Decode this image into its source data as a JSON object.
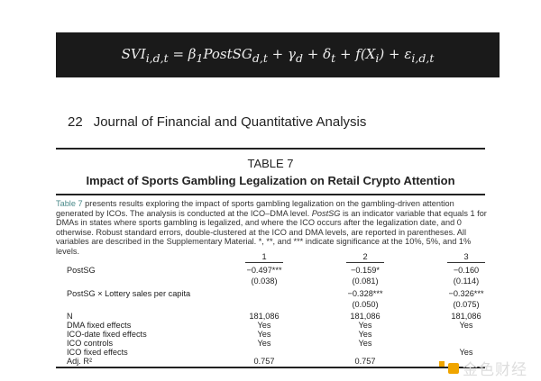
{
  "equation": "SVI_{i,d,t} = β₁PostSG_{d,t} + γ_d + δ_t + f(X_i) + ε_{i,d,t}",
  "header": {
    "page": "22",
    "journal": "Journal of Financial and Quantitative Analysis"
  },
  "table": {
    "number": "TABLE 7",
    "title": "Impact of Sports Gambling Legalization on Retail Crypto Attention",
    "caption_link": "Table 7",
    "caption_1": " presents results exploring the impact of sports gambling legalization on the gambling-driven attention generated by ICOs. The analysis is conducted at the ICO–DMA level. ",
    "caption_italic": "PostSG",
    "caption_2": " is an indicator variable that equals 1 for DMAs in states where sports gambling is legalized, and where the ICO occurs after the legalization date, and 0 otherwise. Robust standard errors, double-clustered at the ICO and DMA levels, are reported in parentheses. All variables are described in the Supplementary Material. *, **, and *** indicate significance at the 10%, 5%, and 1% levels.",
    "columns": [
      "1",
      "2",
      "3"
    ],
    "rows": [
      {
        "label": "PostSG",
        "values": [
          "−0.497***",
          "−0.159*",
          "−0.160"
        ]
      },
      {
        "label": "",
        "values": [
          "(0.038)",
          "(0.081)",
          "(0.114)"
        ]
      },
      {
        "label": "PostSG × Lottery sales per capita",
        "values": [
          "",
          "−0.328***",
          "−0.326***"
        ]
      },
      {
        "label": "",
        "values": [
          "",
          "(0.050)",
          "(0.075)"
        ]
      },
      {
        "label": "N",
        "values": [
          "181,086",
          "181,086",
          "181,086"
        ]
      },
      {
        "label": "DMA fixed effects",
        "values": [
          "Yes",
          "Yes",
          "Yes"
        ]
      },
      {
        "label": "ICO-date fixed effects",
        "values": [
          "Yes",
          "Yes",
          ""
        ]
      },
      {
        "label": "ICO controls",
        "values": [
          "Yes",
          "Yes",
          ""
        ]
      },
      {
        "label": "ICO fixed effects",
        "values": [
          "",
          "",
          "Yes"
        ]
      },
      {
        "label": "Adj. R²",
        "values": [
          "0.757",
          "0.757",
          ""
        ]
      }
    ]
  },
  "watermark": "金色财经"
}
